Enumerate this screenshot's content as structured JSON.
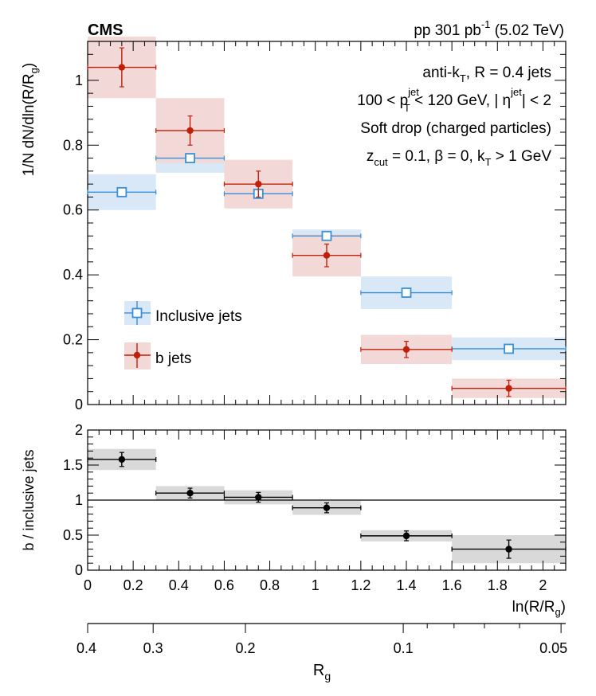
{
  "header": {
    "experiment": "CMS",
    "luminosity_text": "pp 301 pb",
    "luminosity_sup": "-1",
    "energy_text": "(5.02 TeV)"
  },
  "annotations": {
    "line1": "anti-k_T, R = 0.4 jets",
    "line2": "100 < p_T^jet < 120 GeV, | η^jet| < 2",
    "line3": "Soft drop (charged particles)",
    "line4": "z_cut = 0.1,  β = 0, k_T > 1 GeV"
  },
  "colors": {
    "inclusive": "#3a8fd6",
    "inclusive_band": "#d8e8f6",
    "bjets": "#c0200a",
    "bjets_band": "#f2d8d6",
    "ratio": "#000000",
    "ratio_band": "#d9d9d9"
  },
  "chart_data": [
    {
      "type": "scatter",
      "panel": "top",
      "ylabel": "1/N dN/dln(R/R_g)",
      "ylim": [
        0,
        1.12
      ],
      "xlim": [
        0,
        2.1
      ],
      "yticks": [
        0,
        0.2,
        0.4,
        0.6,
        0.8,
        1
      ],
      "ytick_labels": [
        "0",
        "0.2",
        "0.4",
        "0.6",
        "0.8",
        "1"
      ],
      "legend_position": "center-left",
      "series": [
        {
          "name": "Inclusive jets",
          "marker": "open-square",
          "color_key": "inclusive",
          "points": [
            {
              "x": 0.15,
              "xlo": 0.0,
              "xhi": 0.3,
              "y": 0.655,
              "stat": 0.0,
              "syst": 0.055
            },
            {
              "x": 0.45,
              "xlo": 0.3,
              "xhi": 0.6,
              "y": 0.76,
              "stat": 0.0,
              "syst": 0.045
            },
            {
              "x": 0.75,
              "xlo": 0.6,
              "xhi": 0.9,
              "y": 0.65,
              "stat": 0.0,
              "syst": 0.035
            },
            {
              "x": 1.05,
              "xlo": 0.9,
              "xhi": 1.2,
              "y": 0.52,
              "stat": 0.0,
              "syst": 0.02
            },
            {
              "x": 1.4,
              "xlo": 1.2,
              "xhi": 1.6,
              "y": 0.345,
              "stat": 0.0,
              "syst": 0.05
            },
            {
              "x": 1.85,
              "xlo": 1.6,
              "xhi": 2.1,
              "y": 0.172,
              "stat": 0.0,
              "syst": 0.035
            }
          ]
        },
        {
          "name": "b jets",
          "marker": "filled-circle",
          "color_key": "bjets",
          "points": [
            {
              "x": 0.15,
              "xlo": 0.0,
              "xhi": 0.3,
              "y": 1.04,
              "stat": 0.06,
              "syst": 0.095
            },
            {
              "x": 0.45,
              "xlo": 0.3,
              "xhi": 0.6,
              "y": 0.845,
              "stat": 0.045,
              "syst": 0.1
            },
            {
              "x": 0.75,
              "xlo": 0.6,
              "xhi": 0.9,
              "y": 0.68,
              "stat": 0.04,
              "syst": 0.075
            },
            {
              "x": 1.05,
              "xlo": 0.9,
              "xhi": 1.2,
              "y": 0.46,
              "stat": 0.035,
              "syst": 0.065
            },
            {
              "x": 1.4,
              "xlo": 1.2,
              "xhi": 1.6,
              "y": 0.17,
              "stat": 0.025,
              "syst": 0.045
            },
            {
              "x": 1.85,
              "xlo": 1.6,
              "xhi": 2.1,
              "y": 0.05,
              "stat": 0.025,
              "syst": 0.03
            }
          ]
        }
      ]
    },
    {
      "type": "scatter",
      "panel": "ratio",
      "ylabel": "b / inclusive jets",
      "ylim": [
        0,
        2
      ],
      "yticks": [
        0,
        0.5,
        1,
        1.5,
        2
      ],
      "ytick_labels": [
        "0",
        "0.5",
        "1",
        "1.5",
        "2"
      ],
      "reference_line": 1,
      "series": [
        {
          "marker": "filled-circle",
          "color_key": "ratio",
          "points": [
            {
              "x": 0.15,
              "xlo": 0.0,
              "xhi": 0.3,
              "y": 1.58,
              "stat": 0.1,
              "syst": 0.15
            },
            {
              "x": 0.45,
              "xlo": 0.3,
              "xhi": 0.6,
              "y": 1.1,
              "stat": 0.07,
              "syst": 0.1
            },
            {
              "x": 0.75,
              "xlo": 0.6,
              "xhi": 0.9,
              "y": 1.04,
              "stat": 0.07,
              "syst": 0.1
            },
            {
              "x": 1.05,
              "xlo": 0.9,
              "xhi": 1.2,
              "y": 0.89,
              "stat": 0.07,
              "syst": 0.1
            },
            {
              "x": 1.4,
              "xlo": 1.2,
              "xhi": 1.6,
              "y": 0.49,
              "stat": 0.07,
              "syst": 0.08
            },
            {
              "x": 1.85,
              "xlo": 1.6,
              "xhi": 2.1,
              "y": 0.3,
              "stat": 0.13,
              "syst": 0.2
            }
          ]
        }
      ]
    },
    {
      "type": "axis",
      "panel": "x-axes",
      "xlabel": "ln(R/R_g)",
      "xlim": [
        0,
        2.1
      ],
      "xticks": [
        0,
        0.2,
        0.4,
        0.6,
        0.8,
        1,
        1.2,
        1.4,
        1.6,
        1.8,
        2
      ],
      "xtick_labels": [
        "0",
        "0.2",
        "0.4",
        "0.6",
        "0.8",
        "1",
        "1.2",
        "1.4",
        "1.6",
        "1.8",
        "2"
      ],
      "secondary_xlabel": "R_g",
      "secondary_scale": "log",
      "secondary_xlim": [
        0.4,
        0.049
      ],
      "secondary_xticks": [
        0.4,
        0.3,
        0.2,
        0.1,
        0.05
      ],
      "secondary_xtick_labels": [
        "0.4",
        "0.3",
        "0.2",
        "0.1",
        "0.05"
      ]
    }
  ]
}
